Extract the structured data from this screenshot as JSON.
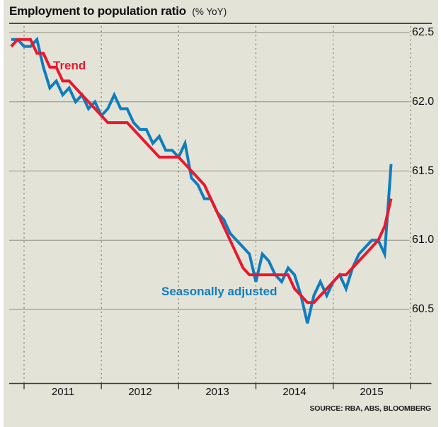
{
  "header": {
    "title": "Employment to population ratio",
    "subtitle": "(% YoY)"
  },
  "source": {
    "text": "SOURCE: RBA, ABS, BLOOMBERG"
  },
  "colors": {
    "background": "#e4e3d8",
    "trend_red": "#e8192d",
    "seasonal_blue": "#0f7dbe",
    "grid": "#8f8e84",
    "dotted_grid": "#73736a",
    "axis": "#3c3c38",
    "title_rule": "#4b4b47",
    "text": "#0e0e0e"
  },
  "chart_data": {
    "type": "line",
    "title": "Employment to population ratio (% YoY)",
    "xlabel": "",
    "ylabel": "",
    "y_axis_side": "right",
    "ylim": [
      60.0,
      62.6
    ],
    "y_ticks": [
      62.5,
      62.0,
      61.5,
      61.0,
      60.5
    ],
    "grid": "horizontal solid, vertical dotted at year boundaries",
    "frequency": "monthly",
    "start_month": "Nov 2010",
    "end_month": "Oct 2015",
    "x_tick_labels": [
      "2011",
      "2012",
      "2013",
      "2014",
      "2015"
    ],
    "legend": "inline annotations",
    "series": [
      {
        "name": "Trend",
        "color": "#e8192d",
        "values": [
          62.4,
          62.45,
          62.45,
          62.45,
          62.35,
          62.35,
          62.25,
          62.25,
          62.15,
          62.15,
          62.1,
          62.05,
          62.0,
          61.95,
          61.9,
          61.85,
          61.85,
          61.85,
          61.85,
          61.8,
          61.75,
          61.7,
          61.65,
          61.6,
          61.6,
          61.6,
          61.6,
          61.55,
          61.5,
          61.45,
          61.4,
          61.3,
          61.2,
          61.1,
          61.0,
          60.9,
          60.8,
          60.75,
          60.75,
          60.75,
          60.75,
          60.75,
          60.75,
          60.75,
          60.65,
          60.6,
          60.55,
          60.55,
          60.6,
          60.65,
          60.7,
          60.75,
          60.75,
          60.8,
          60.85,
          60.9,
          60.95,
          61.0,
          61.1,
          61.3
        ]
      },
      {
        "name": "Seasonally adjusted",
        "color": "#0f7dbe",
        "values": [
          62.45,
          62.45,
          62.4,
          62.4,
          62.45,
          62.25,
          62.1,
          62.15,
          62.05,
          62.1,
          62.0,
          62.05,
          61.95,
          62.0,
          61.9,
          61.95,
          62.05,
          61.95,
          61.95,
          61.85,
          61.8,
          61.8,
          61.7,
          61.75,
          61.65,
          61.65,
          61.6,
          61.7,
          61.45,
          61.4,
          61.3,
          61.3,
          61.2,
          61.15,
          61.05,
          61.0,
          60.95,
          60.9,
          60.7,
          60.9,
          60.85,
          60.75,
          60.7,
          60.8,
          60.75,
          60.6,
          60.4,
          60.6,
          60.7,
          60.6,
          60.7,
          60.75,
          60.65,
          60.8,
          60.9,
          60.95,
          61.0,
          61.0,
          60.9,
          61.55
        ]
      }
    ],
    "annotations": [
      {
        "text": "Trend",
        "series": "Trend"
      },
      {
        "text": "Seasonally adjusted",
        "series": "Seasonally adjusted"
      }
    ]
  }
}
